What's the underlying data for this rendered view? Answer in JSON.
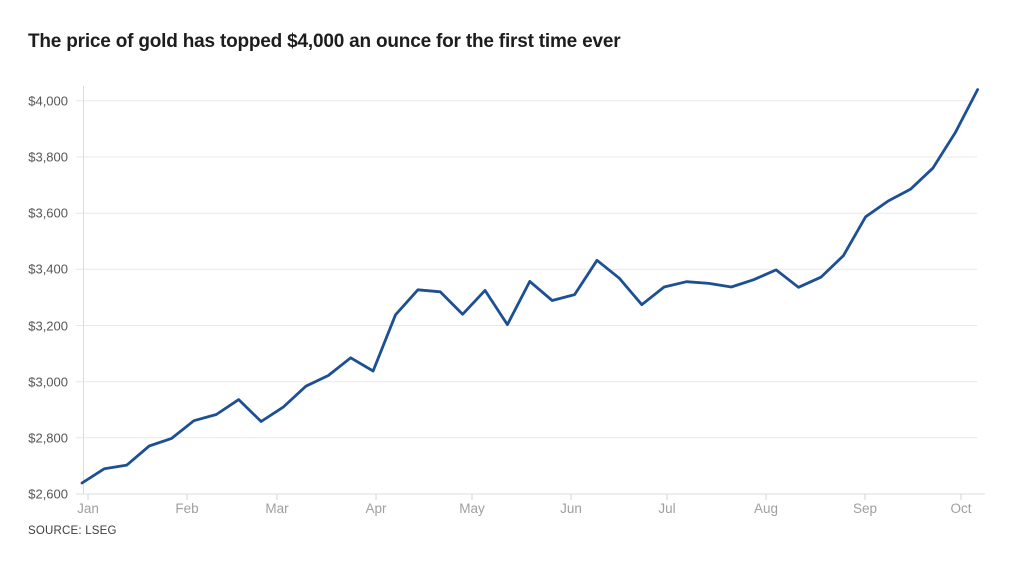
{
  "title": "The price of gold has topped $4,000 an ounce for the first time ever",
  "source": "SOURCE: LSEG",
  "chart_data": {
    "type": "line",
    "title": "The price of gold has topped $4,000 an ounce for the first time ever",
    "xlabel": "",
    "ylabel": "",
    "x_categories": [
      "Jan",
      "Feb",
      "Mar",
      "Apr",
      "May",
      "Jun",
      "Jul",
      "Aug",
      "Sep",
      "Oct"
    ],
    "y_tick_labels": [
      "$4,000",
      "$3,800",
      "$3,600",
      "$3,400",
      "$3,200",
      "$3,000",
      "$2,800",
      "$2,600"
    ],
    "y_tick_values": [
      4000,
      3800,
      3600,
      3400,
      3200,
      3000,
      2800,
      2600
    ],
    "ylim": [
      2600,
      4075
    ],
    "grid": true,
    "legend_position": "none",
    "line_color": "#1d4f94",
    "series": [
      {
        "name": "gold-price-usd-per-ounce",
        "cadence": "weekly, Jan through early Oct, final point when price topped $4,000",
        "values": [
          2639,
          2690,
          2703,
          2771,
          2798,
          2861,
          2883,
          2936,
          2858,
          2910,
          2984,
          3022,
          3085,
          3038,
          3238,
          3327,
          3320,
          3240,
          3325,
          3203,
          3357,
          3289,
          3310,
          3432,
          3368,
          3274,
          3337,
          3356,
          3350,
          3337,
          3363,
          3398,
          3336,
          3372,
          3448,
          3587,
          3643,
          3685,
          3760,
          3886,
          4040
        ]
      }
    ]
  }
}
